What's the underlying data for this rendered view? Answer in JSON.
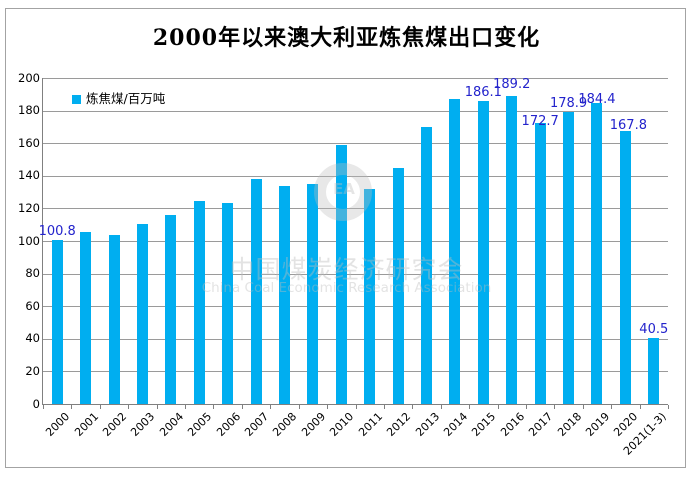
{
  "chart": {
    "title": "2000年以来澳大利亚炼焦煤出口变化",
    "legend_label": "炼焦煤/百万吨",
    "watermark": {
      "cn": "中国煤炭经济研究会",
      "en": "China Coal Economic Research Association",
      "monogram": "EA"
    },
    "colors": {
      "bar": "#00AEF0",
      "data_label": "#2323CC",
      "gridline": "#9A9A9A",
      "axis": "#808080"
    }
  },
  "chart_data": {
    "type": "bar",
    "title": "2000年以来澳大利亚炼焦煤出口变化",
    "legend": [
      "炼焦煤/百万吨"
    ],
    "legend_position": "top-left-inside",
    "grid": "horizontal",
    "ylim": [
      0,
      200
    ],
    "yticks": [
      0,
      20,
      40,
      60,
      80,
      100,
      120,
      140,
      160,
      180,
      200
    ],
    "categories": [
      "2000",
      "2001",
      "2002",
      "2003",
      "2004",
      "2005",
      "2006",
      "2007",
      "2008",
      "2009",
      "2010",
      "2011",
      "2012",
      "2013",
      "2014",
      "2015",
      "2016",
      "2017",
      "2018",
      "2019",
      "2020",
      "2021(1-3)"
    ],
    "values": [
      100.8,
      105.5,
      103.4,
      110.5,
      116.2,
      124.7,
      123.5,
      137.8,
      134.0,
      135.0,
      158.8,
      132.0,
      144.5,
      169.8,
      186.9,
      186.1,
      189.2,
      172.7,
      178.9,
      184.4,
      167.8,
      40.5
    ],
    "point_labels": [
      "100.8",
      "",
      "",
      "",
      "",
      "",
      "",
      "",
      "",
      "",
      "",
      "",
      "",
      "",
      "",
      "186.1",
      "189.2",
      "172.7",
      "178.9",
      "184.4",
      "167.8",
      "40.5"
    ],
    "label_offsets": {
      "16": [
        0,
        -3
      ],
      "17": [
        0,
        8
      ],
      "19": [
        0,
        5
      ],
      "20": [
        3,
        4
      ]
    },
    "bar_color": "#00AEF0",
    "xlabel": "",
    "ylabel": ""
  }
}
